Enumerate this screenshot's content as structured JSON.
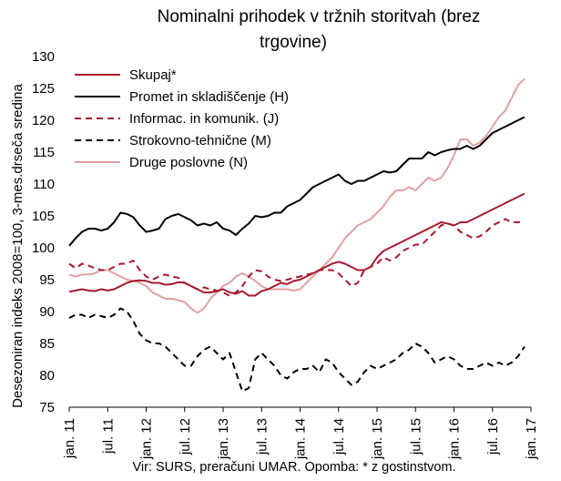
{
  "chart_data": {
    "type": "line",
    "title_lines": [
      "Nominalni prihodek v tržnih storitvah (brez",
      "trgovine)"
    ],
    "ylabel": "Desezoniran indeks 2008=100, 3-mes.drseča sredina",
    "xlabel": "",
    "ylim": [
      75,
      130
    ],
    "yticks": [
      75,
      80,
      85,
      90,
      95,
      100,
      105,
      110,
      115,
      120,
      125,
      130
    ],
    "x_tick_labels": [
      "jan. 11",
      "jul. 11",
      "jan. 12",
      "jul. 12",
      "jan. 13",
      "jul. 13",
      "jan. 14",
      "jul. 14",
      "jan. 15",
      "jul. 15",
      "jan. 16",
      "jul. 16",
      "jan. 17"
    ],
    "x_tick_months": [
      0,
      6,
      12,
      18,
      24,
      30,
      36,
      42,
      48,
      54,
      60,
      66,
      72
    ],
    "x_range_months": [
      0,
      72
    ],
    "grid": false,
    "legend_position": "top-left",
    "source": "Vir: SURS, preračuni UMAR. Opomba: * z gostinstvom.",
    "series": [
      {
        "name": "Skupaj*",
        "color": "#a6192e",
        "dash": "solid",
        "values": [
          93.1,
          93.3,
          93.5,
          93.3,
          93.2,
          93.5,
          93.3,
          93.5,
          94.0,
          94.5,
          94.8,
          94.9,
          94.8,
          94.5,
          94.5,
          94.2,
          94.3,
          94.6,
          94.5,
          94.0,
          93.5,
          93.0,
          93.0,
          93.2,
          93.5,
          93.0,
          92.8,
          93.2,
          92.5,
          92.5,
          93.2,
          93.5,
          94.0,
          94.5,
          94.3,
          94.8,
          95.0,
          95.5,
          96.0,
          96.5,
          97.0,
          97.5,
          97.8,
          97.5,
          97.0,
          96.5,
          96.5,
          97.0,
          98.5,
          99.5,
          100.0,
          100.5,
          101.0,
          101.5,
          102.0,
          102.5,
          103.0,
          103.5,
          104.0,
          103.8,
          103.5,
          104.0,
          104.0,
          104.5,
          105.0,
          105.5,
          106.0,
          106.5,
          107.0,
          107.5,
          108.0,
          108.5
        ]
      },
      {
        "name": "Promet in skladiščenje (H)",
        "color": "#000000",
        "dash": "solid",
        "values": [
          100.3,
          101.5,
          102.5,
          103.0,
          103.0,
          102.7,
          103.0,
          104.0,
          105.5,
          105.3,
          104.8,
          103.5,
          102.5,
          102.7,
          103.0,
          104.5,
          105.0,
          105.3,
          104.8,
          104.3,
          103.5,
          103.8,
          103.5,
          104.0,
          103.0,
          102.7,
          102.0,
          103.0,
          103.8,
          105.0,
          104.8,
          105.0,
          105.5,
          105.5,
          106.5,
          107.0,
          107.5,
          108.5,
          109.5,
          110.0,
          110.5,
          111.0,
          111.5,
          110.5,
          110.0,
          110.5,
          110.5,
          111.0,
          111.5,
          112.0,
          111.8,
          112.0,
          113.0,
          114.0,
          114.0,
          114.0,
          115.0,
          114.5,
          115.0,
          115.3,
          115.5,
          115.5,
          116.0,
          115.5,
          116.0,
          117.0,
          118.0,
          118.5,
          119.0,
          119.5,
          120.0,
          120.5
        ]
      },
      {
        "name": "Informac. in komunik. (J)",
        "color": "#a6192e",
        "dash": "dashed",
        "values": [
          97.5,
          96.8,
          97.5,
          97.2,
          96.8,
          96.5,
          96.5,
          97.0,
          97.5,
          97.5,
          98.0,
          96.5,
          95.5,
          95.0,
          95.5,
          95.8,
          95.5,
          95.3,
          94.5,
          94.0,
          93.5,
          93.8,
          93.5,
          93.3,
          93.0,
          92.5,
          93.0,
          94.0,
          95.5,
          96.5,
          96.3,
          95.5,
          95.0,
          94.8,
          95.0,
          95.3,
          95.5,
          95.8,
          96.0,
          96.5,
          96.5,
          96.5,
          96.0,
          95.0,
          94.0,
          94.5,
          96.5,
          97.0,
          97.5,
          98.5,
          98.0,
          98.5,
          99.5,
          100.0,
          100.5,
          100.5,
          101.5,
          102.5,
          103.5,
          103.8,
          103.5,
          102.5,
          102.0,
          101.5,
          101.8,
          102.5,
          103.5,
          104.0,
          104.5,
          104.0,
          104.0,
          104.2
        ]
      },
      {
        "name": "Strokovno-tehnične (M)",
        "color": "#000000",
        "dash": "dashed",
        "values": [
          89.0,
          89.5,
          89.5,
          89.0,
          89.5,
          89.3,
          89.0,
          89.5,
          90.5,
          90.0,
          88.5,
          86.5,
          85.5,
          85.0,
          85.0,
          84.5,
          83.5,
          82.5,
          81.5,
          81.5,
          83.0,
          84.0,
          84.5,
          83.5,
          82.5,
          83.5,
          80.5,
          77.5,
          78.0,
          82.5,
          83.5,
          82.5,
          81.5,
          80.0,
          79.5,
          80.5,
          81.0,
          81.0,
          81.5,
          80.5,
          82.5,
          82.0,
          80.5,
          79.5,
          78.5,
          79.0,
          80.5,
          81.5,
          81.0,
          81.5,
          82.0,
          82.5,
          83.5,
          84.0,
          85.0,
          84.5,
          83.5,
          82.0,
          82.5,
          83.0,
          82.5,
          81.5,
          81.0,
          81.0,
          81.5,
          82.0,
          81.5,
          82.0,
          81.5,
          82.0,
          83.0,
          84.5
        ]
      },
      {
        "name": "Druge poslovne (N)",
        "color": "#e2a0a0",
        "dash": "solid",
        "values": [
          95.8,
          95.5,
          95.8,
          95.8,
          96.0,
          96.5,
          96.5,
          96.0,
          95.5,
          95.0,
          94.8,
          94.5,
          94.0,
          93.0,
          92.5,
          92.0,
          92.0,
          91.8,
          91.5,
          90.5,
          89.8,
          90.5,
          92.0,
          93.0,
          94.0,
          94.5,
          95.5,
          96.0,
          95.5,
          94.8,
          94.0,
          93.5,
          93.5,
          93.5,
          93.5,
          93.3,
          93.5,
          94.5,
          95.5,
          96.5,
          97.5,
          98.5,
          100.0,
          101.5,
          102.5,
          103.5,
          104.0,
          104.5,
          105.5,
          106.5,
          108.0,
          109.0,
          109.0,
          109.5,
          109.0,
          110.0,
          111.0,
          110.5,
          111.0,
          112.5,
          114.5,
          117.0,
          117.0,
          116.0,
          116.5,
          117.5,
          119.0,
          120.5,
          121.5,
          123.5,
          125.5,
          126.5
        ]
      }
    ]
  }
}
